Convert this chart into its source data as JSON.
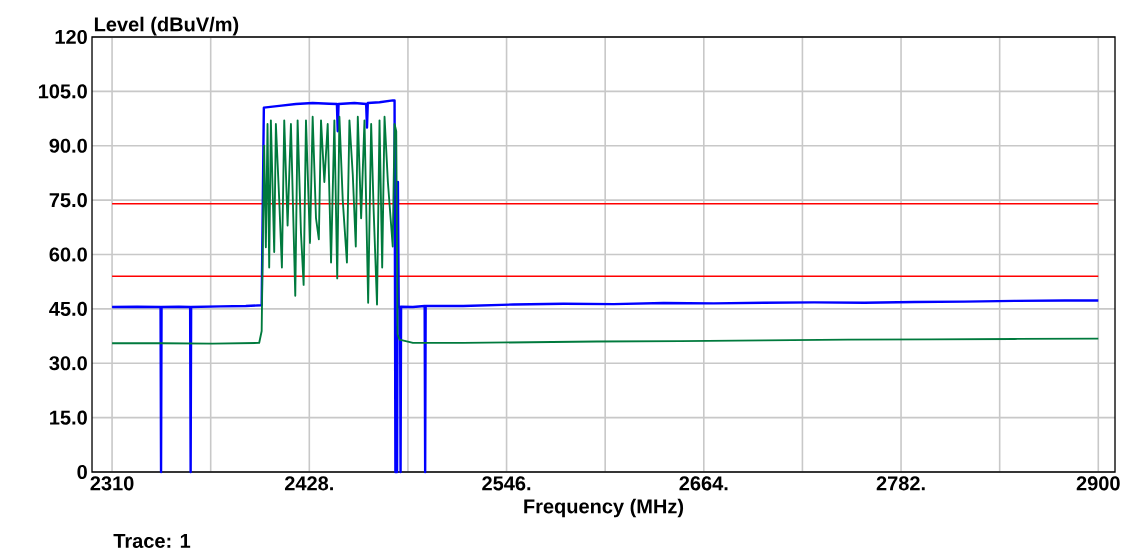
{
  "chart_data": {
    "type": "line",
    "xlabel": "Frequency (MHz)",
    "ylabel": "Level (dBuV/m)",
    "xlim": [
      2298,
      2910
    ],
    "ylim": [
      0,
      120
    ],
    "xticks": [
      2310,
      {
        "value": 2369,
        "label": null
      },
      {
        "value": 2428,
        "label": "2428."
      },
      {
        "value": 2487,
        "label": null
      },
      {
        "value": 2546,
        "label": "2546."
      },
      {
        "value": 2605,
        "label": null
      },
      {
        "value": 2664,
        "label": "2664."
      },
      {
        "value": 2723,
        "label": null
      },
      {
        "value": 2782,
        "label": "2782."
      },
      {
        "value": 2841,
        "label": null
      },
      2900
    ],
    "yticks": [
      0,
      {
        "value": 15,
        "label": "15.0"
      },
      {
        "value": 30,
        "label": "30.0"
      },
      {
        "value": 45,
        "label": "45.0"
      },
      {
        "value": 60,
        "label": "60.0"
      },
      {
        "value": 75,
        "label": "75.0"
      },
      {
        "value": 90,
        "label": "90.0"
      },
      {
        "value": 105,
        "label": "105.0"
      },
      120
    ],
    "grid": true,
    "marker": "none",
    "line_style": "solid",
    "series": [
      {
        "color": "#0000ff",
        "x": [
          2310,
          2325,
          2339,
          2339.3,
          2339.6,
          2350,
          2356.7,
          2357,
          2357.3,
          2375,
          2390,
          2399.5,
          2400.8,
          2410,
          2420,
          2430,
          2440,
          2444.5,
          2445,
          2445.5,
          2455,
          2462,
          2462.5,
          2463,
          2470,
          2478,
          2479,
          2479.5,
          2480.5,
          2481,
          2481.5,
          2482.3,
          2482.6,
          2482.9,
          2490,
          2497,
          2497.3,
          2497.6,
          2520,
          2550,
          2580,
          2610,
          2640,
          2670,
          2700,
          2730,
          2760,
          2790,
          2820,
          2850,
          2880,
          2900
        ],
        "values": [
          45.5,
          45.6,
          45.5,
          0,
          45.5,
          45.6,
          45.5,
          0,
          45.5,
          45.7,
          45.8,
          46,
          100.5,
          101,
          101.5,
          101.8,
          101.6,
          101.5,
          94,
          101.5,
          101.8,
          101.5,
          95,
          101.8,
          102,
          102.5,
          102.5,
          0,
          0,
          80,
          45.5,
          45.5,
          0,
          45.6,
          45.5,
          45.8,
          0,
          45.8,
          45.8,
          46.2,
          46.4,
          46.3,
          46.6,
          46.5,
          46.7,
          46.8,
          46.7,
          46.9,
          47.0,
          47.2,
          47.3,
          47.3
        ]
      },
      {
        "color": "#007a3d",
        "x": [
          2310,
          2340,
          2370,
          2398,
          2399.5,
          2400.3,
          2401,
          2402,
          2403,
          2404,
          2405,
          2407,
          2408,
          2410,
          2411.6,
          2413,
          2415,
          2417,
          2419.6,
          2421,
          2423,
          2424.6,
          2426,
          2428.4,
          2430,
          2432,
          2433.7,
          2435,
          2437,
          2439,
          2441,
          2443,
          2444.7,
          2446,
          2448,
          2450.5,
          2452,
          2454,
          2455.8,
          2457,
          2459,
          2461,
          2463.2,
          2465,
          2466.5,
          2468.5,
          2470,
          2471.6,
          2473,
          2475,
          2477.9,
          2479,
          2480,
          2480.8,
          2482,
          2490,
          2520,
          2560,
          2600,
          2650,
          2700,
          2750,
          2800,
          2850,
          2900
        ],
        "values": [
          35.5,
          35.5,
          35.4,
          35.6,
          38.9,
          68,
          90,
          62,
          96,
          56.4,
          97,
          60.7,
          96,
          75,
          56.4,
          97,
          68,
          96,
          48.6,
          97,
          66,
          51.6,
          97,
          63.2,
          98,
          70,
          64.2,
          97,
          80,
          96,
          57.8,
          97,
          53.4,
          98,
          75,
          57.8,
          97,
          82,
          62.2,
          98,
          70,
          97,
          46.7,
          96,
          72,
          46.2,
          97,
          56.4,
          98,
          80,
          62.2,
          96,
          94,
          38,
          36.5,
          35.6,
          35.6,
          35.8,
          36,
          36.1,
          36.3,
          36.5,
          36.6,
          36.7,
          36.8
        ]
      }
    ],
    "ref_lines": [
      {
        "axis": "y",
        "value": 74,
        "color": "#ff0000"
      },
      {
        "axis": "y",
        "value": 54,
        "color": "#ff0000"
      }
    ],
    "annotations": [
      "Trace: 1"
    ]
  }
}
